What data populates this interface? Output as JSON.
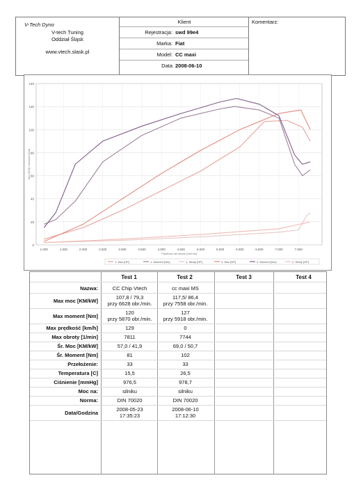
{
  "company": {
    "name": "V-Tech Dyno",
    "line1": "V-tech Tuning",
    "line2": "Oddział Śląsk",
    "url": "www.vtech.slask.pl"
  },
  "client": {
    "title": "Klient",
    "fields": [
      {
        "label": "Rejestracja:",
        "value": "swd 99e4"
      },
      {
        "label": "Marka:",
        "value": "Fiat"
      },
      {
        "label": "Model:",
        "value": "CC maxi"
      },
      {
        "label": "Data",
        "value": "2008-06-10"
      }
    ]
  },
  "comment": {
    "label": "Komentarz:"
  },
  "chart_data": {
    "type": "line",
    "ylabel": "Moc [KM] / Moment [Nm]",
    "xlabel": "Prędkość obrotowa [obr/min]",
    "xlim": [
      800,
      8100
    ],
    "ylim": [
      0,
      140
    ],
    "y_ticks": [
      0,
      20,
      40,
      60,
      80,
      100,
      120,
      140
    ],
    "x_ticks": [
      "1.000",
      "1.500",
      "2.000",
      "2.500",
      "3.000",
      "3.500",
      "4.000",
      "4.500",
      "5.000",
      "5.500",
      "6.000",
      "6.500",
      "7.000",
      "7.500"
    ],
    "series": [
      {
        "name": "1. Moc [HP]",
        "color": "#e8a39a",
        "x": [
          1000,
          2000,
          3000,
          4000,
          5000,
          6000,
          6628,
          7200,
          7600,
          7800
        ],
        "y": [
          5,
          15,
          30,
          47,
          64,
          85,
          107,
          108,
          102,
          90
        ]
      },
      {
        "name": "1. Moment [Nm]",
        "color": "#9d7f9a",
        "x": [
          1000,
          1300,
          1800,
          2500,
          3500,
          4500,
          5500,
          5870,
          6500,
          7000,
          7400,
          7600,
          7800
        ],
        "y": [
          18,
          22,
          38,
          72,
          95,
          110,
          118,
          120,
          117,
          110,
          70,
          60,
          65
        ]
      },
      {
        "name": "1. Straty [HP]",
        "color": "#e6c8c4",
        "x": [
          1000,
          3000,
          5000,
          7000,
          7500,
          7700,
          7800
        ],
        "y": [
          2,
          4,
          7,
          11,
          13,
          25,
          28
        ]
      },
      {
        "name": "2. Moc [HP]",
        "color": "#e08a7e",
        "x": [
          1000,
          2000,
          3000,
          4000,
          5000,
          6000,
          7000,
          7558,
          7800
        ],
        "y": [
          3,
          18,
          40,
          62,
          82,
          100,
          114,
          117,
          100
        ]
      },
      {
        "name": "2. Moment [Nm]",
        "color": "#7e5c86",
        "x": [
          1000,
          1300,
          1800,
          2500,
          3500,
          4500,
          5500,
          5918,
          6500,
          7000,
          7400,
          7600,
          7800
        ],
        "y": [
          15,
          28,
          70,
          90,
          103,
          114,
          124,
          127,
          122,
          112,
          78,
          70,
          72
        ]
      },
      {
        "name": "2. Straty [HP]",
        "color": "#f0b9b2",
        "x": [
          1000,
          3000,
          5000,
          7000,
          7800
        ],
        "y": [
          2,
          5,
          9,
          14,
          20
        ]
      }
    ]
  },
  "table": {
    "headers": [
      "Test 1",
      "Test 2",
      "Test 3",
      "Test 4"
    ],
    "rows": [
      {
        "label": "Nazwa:",
        "t1": [
          "CC Chip Vtech"
        ],
        "t2": [
          "cc maxi MS"
        ]
      },
      {
        "label": "Max moc [KM/kW]",
        "t1": [
          "107,8 / 79,3",
          "przy 6628 obr./min."
        ],
        "t2": [
          "117,5/ 86,4",
          "przy 7558 obr./min."
        ]
      },
      {
        "label": "Max moment [Nm]",
        "t1": [
          "120",
          "przy 5870 obr./min."
        ],
        "t2": [
          "127",
          "przy 5918 obr./min."
        ]
      },
      {
        "label": "Max prędkość [km/h]",
        "t1": [
          "129"
        ],
        "t2": [
          "0"
        ]
      },
      {
        "label": "Max obroty [1/min]",
        "t1": [
          "7811"
        ],
        "t2": [
          "7744"
        ]
      },
      {
        "label": "Śr. Moc [KM/kW]",
        "t1": [
          "57,0 / 41,9"
        ],
        "t2": [
          "69,0 / 50,7"
        ]
      },
      {
        "label": "Śr. Moment [Nm]",
        "t1": [
          "81"
        ],
        "t2": [
          "102"
        ]
      },
      {
        "label": "Przełożenie:",
        "t1": [
          "33"
        ],
        "t2": [
          "33"
        ]
      },
      {
        "label": "Temperatura [C]",
        "t1": [
          "15,5"
        ],
        "t2": [
          "26,5"
        ]
      },
      {
        "label": "Ciśnienie [mmHg]",
        "t1": [
          "976,5"
        ],
        "t2": [
          "978,7"
        ]
      },
      {
        "label": "Moc na:",
        "t1": [
          "silniku"
        ],
        "t2": [
          "silniku"
        ]
      },
      {
        "label": "Norma:",
        "t1": [
          "DIN 70020"
        ],
        "t2": [
          "DIN 70020"
        ]
      },
      {
        "label": "Data/Godzina",
        "t1": [
          "2008-05-23",
          "17:35:23"
        ],
        "t2": [
          "2008-06-10",
          "17:12:30"
        ]
      }
    ]
  }
}
